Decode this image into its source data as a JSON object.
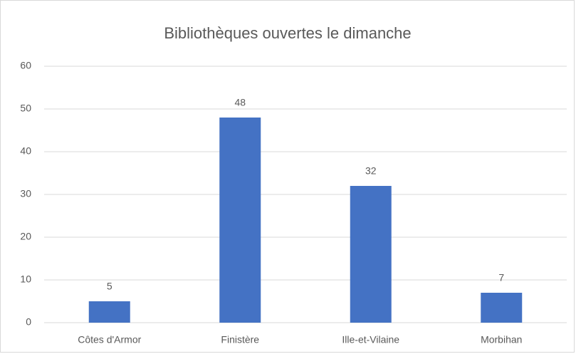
{
  "chart_data": {
    "type": "bar",
    "title": "Bibliothèques ouvertes le dimanche",
    "categories": [
      "Côtes d'Armor",
      "Finistère",
      "Ille-et-Vilaine",
      "Morbihan"
    ],
    "values": [
      5,
      48,
      32,
      7
    ],
    "color": "#4472c4",
    "ylim": [
      0,
      60
    ],
    "yticks": [
      0,
      10,
      20,
      30,
      40,
      50,
      60
    ],
    "grid": true
  }
}
